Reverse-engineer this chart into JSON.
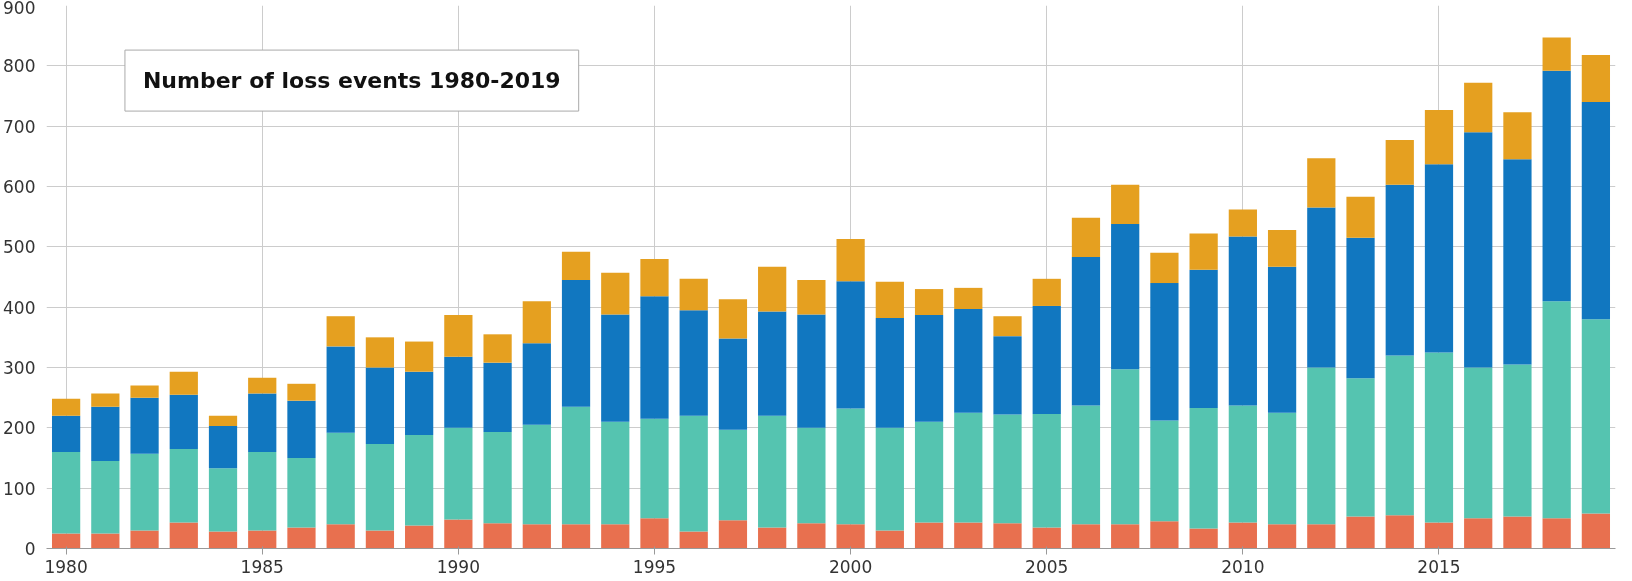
{
  "chart_data": {
    "type": "bar",
    "title": "Number of loss events 1980-2019",
    "stacked": true,
    "x": [
      1980,
      1981,
      1982,
      1983,
      1984,
      1985,
      1986,
      1987,
      1988,
      1989,
      1990,
      1991,
      1992,
      1993,
      1994,
      1995,
      1996,
      1997,
      1998,
      1999,
      2000,
      2001,
      2002,
      2003,
      2004,
      2005,
      2006,
      2007,
      2008,
      2009,
      2010,
      2011,
      2012,
      2013,
      2014,
      2015,
      2016,
      2017,
      2018,
      2019
    ],
    "series": [
      {
        "color": "#e8704f",
        "values": [
          25,
          25,
          30,
          43,
          28,
          30,
          35,
          40,
          30,
          38,
          48,
          42,
          40,
          40,
          40,
          50,
          28,
          47,
          35,
          42,
          40,
          30,
          43,
          43,
          42,
          35,
          40,
          40,
          45,
          33,
          43,
          40,
          40,
          53,
          55,
          43,
          50,
          53,
          50,
          58
        ]
      },
      {
        "color": "#55c4b0",
        "values": [
          135,
          120,
          127,
          122,
          105,
          130,
          115,
          152,
          143,
          150,
          152,
          151,
          165,
          195,
          170,
          165,
          192,
          150,
          185,
          158,
          192,
          170,
          167,
          182,
          180,
          188,
          197,
          257,
          167,
          200,
          194,
          185,
          260,
          229,
          265,
          282,
          250,
          252,
          360,
          322
        ]
      },
      {
        "color": "#1177c0",
        "values": [
          60,
          90,
          93,
          90,
          70,
          97,
          95,
          143,
          127,
          105,
          118,
          115,
          135,
          210,
          178,
          203,
          175,
          151,
          173,
          188,
          211,
          182,
          177,
          172,
          130,
          179,
          246,
          241,
          228,
          229,
          280,
          242,
          265,
          233,
          283,
          312,
          390,
          340,
          382,
          360
        ]
      },
      {
        "color": "#e5a020",
        "values": [
          28,
          22,
          20,
          38,
          17,
          26,
          28,
          50,
          50,
          50,
          69,
          47,
          70,
          47,
          69,
          62,
          52,
          65,
          74,
          57,
          70,
          60,
          43,
          35,
          33,
          45,
          65,
          65,
          50,
          60,
          45,
          61,
          82,
          68,
          74,
          90,
          82,
          78,
          55,
          78
        ]
      }
    ],
    "xlim": [
      1979.5,
      2019.5
    ],
    "xticks": [
      1980,
      1985,
      1990,
      1995,
      2000,
      2005,
      2010,
      2015
    ],
    "ylim": [
      0,
      900
    ],
    "yticks": [
      0,
      100,
      200,
      300,
      400,
      500,
      600,
      700,
      800,
      900
    ],
    "grid": true
  }
}
